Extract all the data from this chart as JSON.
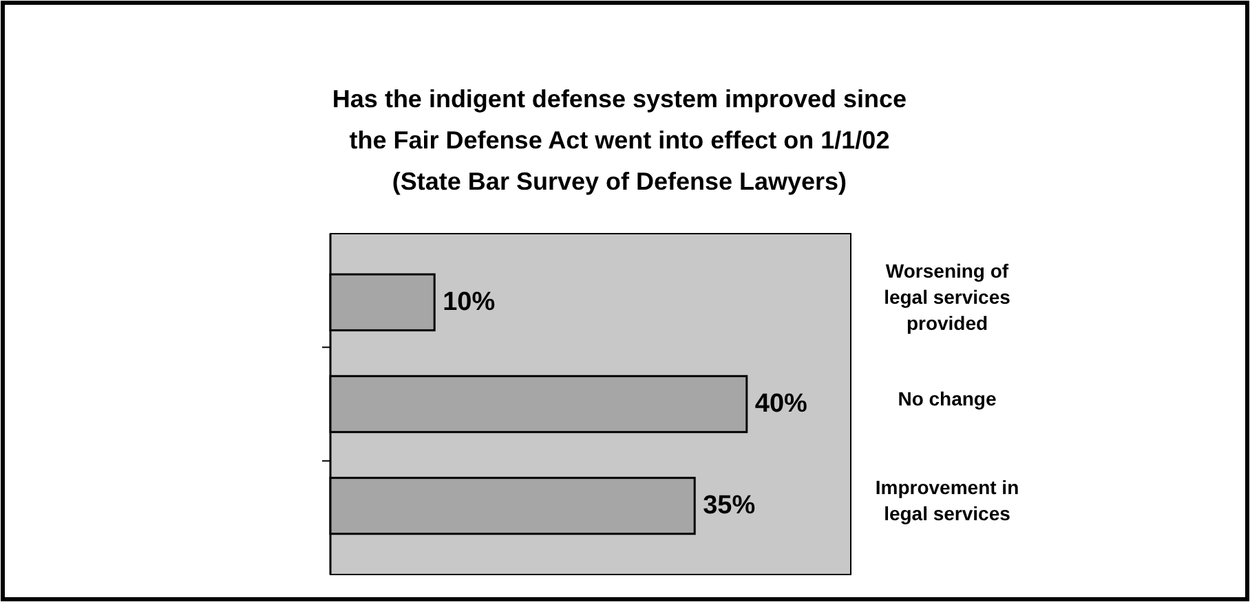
{
  "chart_data": {
    "type": "bar",
    "orientation": "horizontal",
    "title": "Has the indigent defense system improved since the Fair Defense Act went into effect on 1/1/02 (State Bar Survey of Defense Lawyers)",
    "categories": [
      "Worsening of legal services provided",
      "No change",
      "Improvement in legal services"
    ],
    "values": [
      10,
      40,
      35
    ],
    "value_labels": [
      "10%",
      "40%",
      "35%"
    ],
    "color": "#a6a6a6",
    "xlim": [
      0,
      50
    ],
    "grid": false
  }
}
